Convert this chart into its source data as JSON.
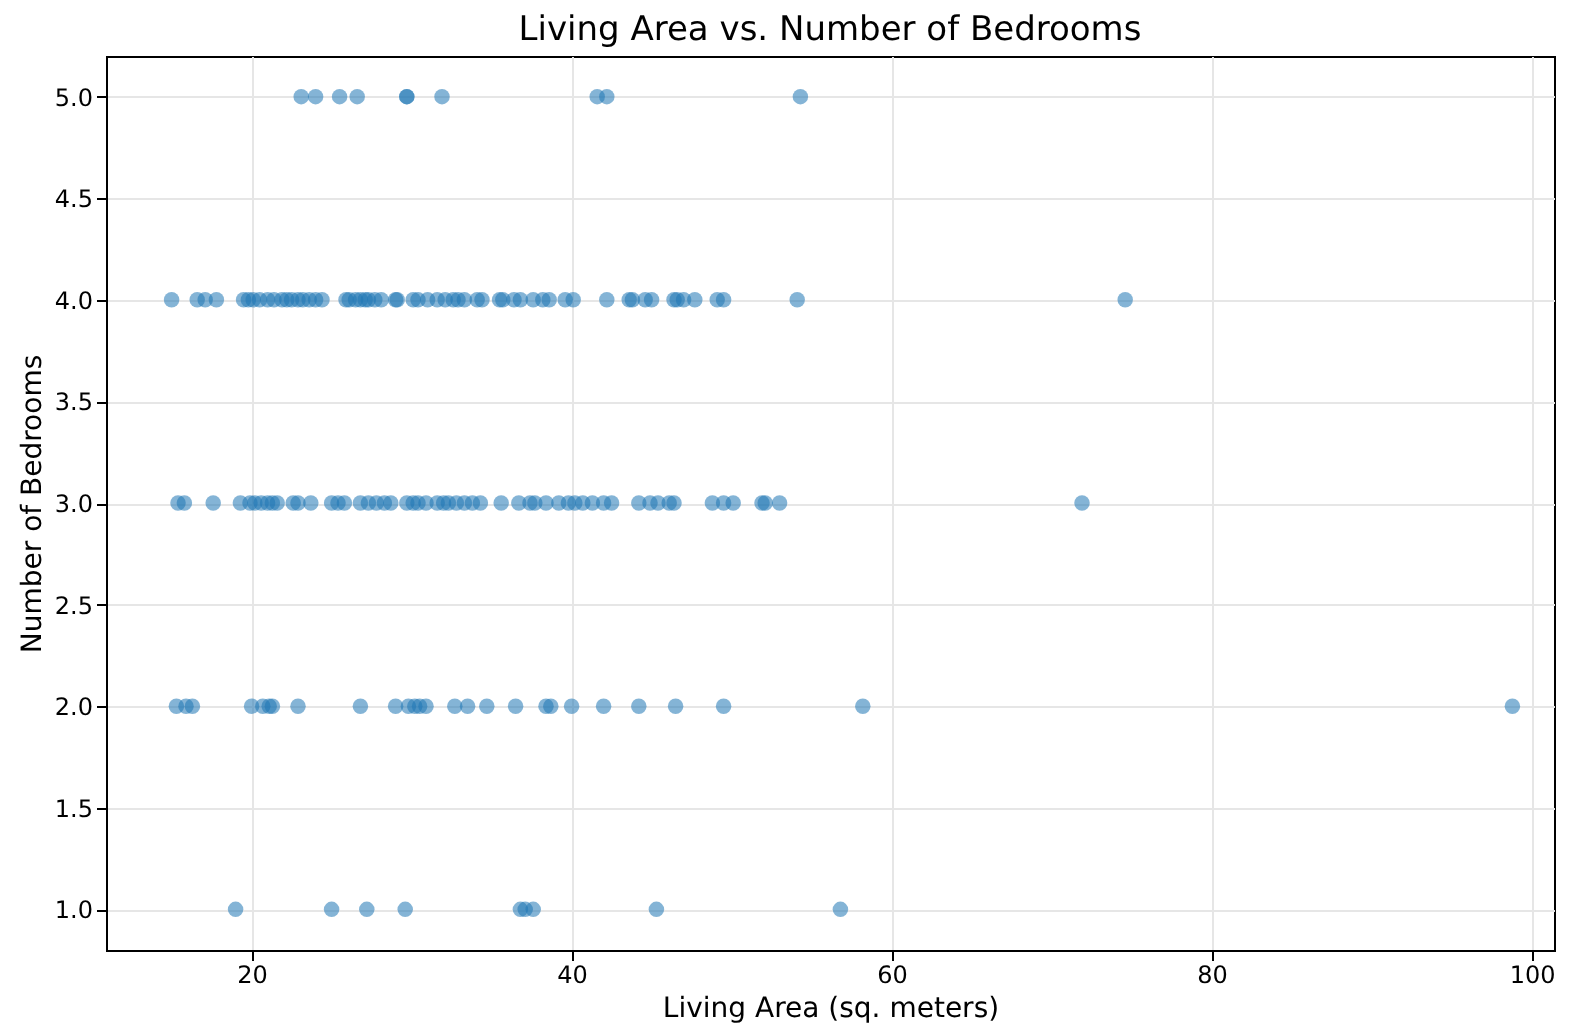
{
  "chart_data": {
    "type": "scatter",
    "title": "Living Area vs. Number of Bedrooms",
    "xlabel": "Living Area (sq. meters)",
    "ylabel": "Number of Bedrooms",
    "x": [
      23.1,
      24.0,
      25.5,
      26.6,
      29.7,
      29.7,
      31.9,
      41.6,
      42.2,
      54.3,
      15.0,
      16.6,
      17.1,
      17.8,
      19.5,
      19.8,
      20.1,
      20.5,
      21.0,
      21.4,
      21.9,
      22.2,
      22.5,
      22.9,
      23.2,
      23.6,
      24.0,
      24.4,
      25.9,
      26.1,
      26.5,
      26.8,
      27.1,
      27.3,
      27.7,
      28.1,
      29.0,
      29.1,
      30.1,
      30.4,
      31.0,
      31.6,
      32.1,
      32.6,
      32.9,
      33.3,
      34.1,
      34.4,
      35.5,
      35.7,
      36.4,
      36.8,
      37.6,
      38.2,
      38.6,
      39.6,
      40.1,
      42.2,
      43.6,
      43.8,
      44.6,
      45.0,
      46.4,
      46.6,
      47.0,
      47.7,
      49.1,
      49.5,
      54.1,
      74.6,
      15.4,
      15.8,
      17.6,
      19.3,
      19.9,
      20.2,
      20.6,
      21.0,
      21.3,
      21.6,
      22.6,
      22.9,
      23.7,
      25.0,
      25.4,
      25.8,
      26.8,
      27.3,
      27.8,
      28.3,
      28.7,
      29.7,
      30.1,
      30.4,
      30.9,
      31.6,
      32.0,
      32.3,
      32.8,
      33.3,
      33.8,
      34.3,
      35.6,
      36.7,
      37.4,
      37.7,
      38.4,
      39.2,
      39.8,
      40.2,
      40.7,
      41.3,
      42.0,
      42.5,
      44.2,
      44.9,
      45.4,
      46.1,
      46.4,
      48.8,
      49.5,
      50.1,
      51.9,
      52.1,
      53.0,
      71.9,
      15.3,
      15.9,
      16.3,
      20.0,
      20.7,
      21.1,
      21.3,
      22.9,
      26.8,
      29.0,
      29.8,
      30.2,
      30.5,
      30.9,
      32.7,
      33.5,
      34.7,
      36.5,
      38.4,
      38.7,
      40.0,
      42.0,
      44.2,
      46.5,
      49.5,
      58.2,
      98.8,
      19.0,
      25.0,
      27.2,
      29.6,
      36.8,
      37.1,
      37.6,
      45.3,
      56.8
    ],
    "series": [
      {
        "color": "#1f77b4",
        "values": [
          5,
          5,
          5,
          5,
          5,
          5,
          5,
          5,
          5,
          5,
          4,
          4,
          4,
          4,
          4,
          4,
          4,
          4,
          4,
          4,
          4,
          4,
          4,
          4,
          4,
          4,
          4,
          4,
          4,
          4,
          4,
          4,
          4,
          4,
          4,
          4,
          4,
          4,
          4,
          4,
          4,
          4,
          4,
          4,
          4,
          4,
          4,
          4,
          4,
          4,
          4,
          4,
          4,
          4,
          4,
          4,
          4,
          4,
          4,
          4,
          4,
          4,
          4,
          4,
          4,
          4,
          4,
          4,
          4,
          4,
          3,
          3,
          3,
          3,
          3,
          3,
          3,
          3,
          3,
          3,
          3,
          3,
          3,
          3,
          3,
          3,
          3,
          3,
          3,
          3,
          3,
          3,
          3,
          3,
          3,
          3,
          3,
          3,
          3,
          3,
          3,
          3,
          3,
          3,
          3,
          3,
          3,
          3,
          3,
          3,
          3,
          3,
          3,
          3,
          3,
          3,
          3,
          3,
          3,
          3,
          3,
          3,
          3,
          3,
          3,
          3,
          2,
          2,
          2,
          2,
          2,
          2,
          2,
          2,
          2,
          2,
          2,
          2,
          2,
          2,
          2,
          2,
          2,
          2,
          2,
          2,
          2,
          2,
          2,
          2,
          2,
          2,
          2,
          1,
          1,
          1,
          1,
          1,
          1,
          1,
          1,
          1
        ]
      }
    ],
    "xlim": [
      10.9,
      101.4
    ],
    "xticks": [
      20,
      40,
      60,
      80,
      100
    ],
    "ylim": [
      0.8,
      5.2
    ],
    "yticks": [
      {
        "value": 1,
        "label": "1.0"
      },
      {
        "value": 1.5,
        "label": "1.5"
      },
      {
        "value": 2,
        "label": "2.0"
      },
      {
        "value": 2.5,
        "label": "2.5"
      },
      {
        "value": 3,
        "label": "3.0"
      },
      {
        "value": 3.5,
        "label": "3.5"
      },
      {
        "value": 4,
        "label": "4.0"
      },
      {
        "value": 4.5,
        "label": "4.5"
      },
      {
        "value": 5,
        "label": "5.0"
      }
    ],
    "grid": true,
    "marker": "circle"
  }
}
